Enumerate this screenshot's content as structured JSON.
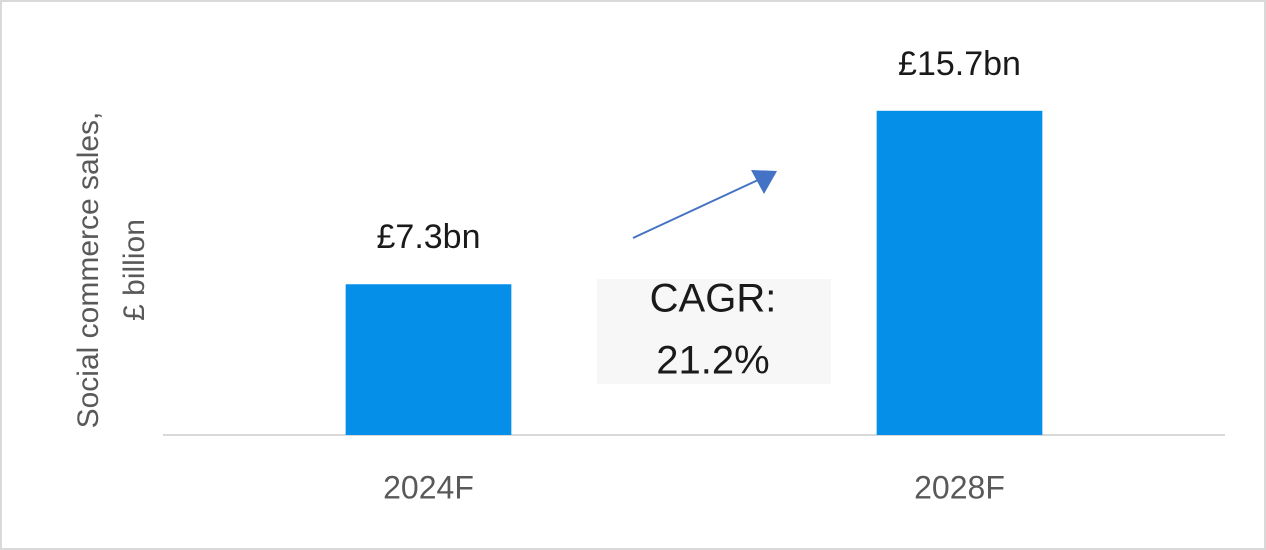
{
  "chart_data": {
    "type": "bar",
    "y_label": [
      "Social commerce sales,",
      "£ billion"
    ],
    "categories": [
      "2024F",
      "2028F"
    ],
    "values": [
      7.3,
      15.7
    ],
    "value_labels": [
      "£7.3bn",
      "£15.7bn"
    ],
    "color": "#058fe8",
    "ylim": [
      0,
      20
    ],
    "annotation": [
      "CAGR:",
      "21.2%"
    ]
  }
}
